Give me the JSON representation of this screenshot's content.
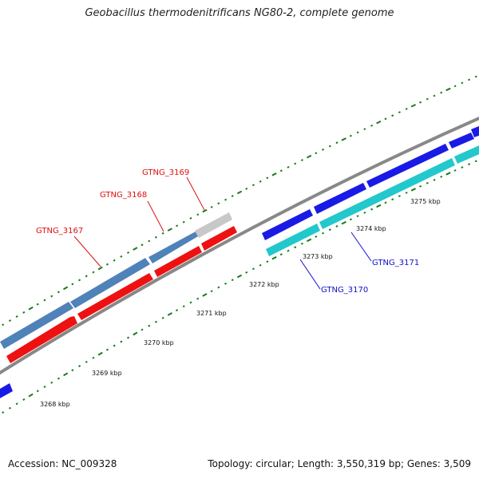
{
  "title": "Geobacillus thermodenitrificans NG80-2, complete genome",
  "footer": {
    "accession": "Accession: NC_009328",
    "summary": "Topology: circular; Length: 3,550,319 bp; Genes: 3,509"
  },
  "colors": {
    "forward_gene": "#1a1ae6",
    "forward_gene_alt": "#4f82b8",
    "reverse_gene": "#ee1111",
    "cyan_gene": "#22c8cc",
    "gray_gene": "#c8c8c8",
    "backbone": "#888888",
    "tick_major": "#1a7a1a",
    "tick_minor": "#1a7a1a",
    "label_red": "#d11",
    "label_blue": "#1010cc"
  },
  "ticks": {
    "labels": [
      "3268 kbp",
      "3269 kbp",
      "3270 kbp",
      "3271 kbp",
      "3272 kbp",
      "3273 kbp",
      "3274 kbp",
      "3275 kbp"
    ]
  },
  "genes": [
    {
      "name": "GTNG_3167",
      "strand": "forward"
    },
    {
      "name": "GTNG_3168",
      "strand": "forward"
    },
    {
      "name": "GTNG_3169",
      "strand": "forward"
    },
    {
      "name": "GTNG_3170",
      "strand": "reverse"
    },
    {
      "name": "GTNG_3171",
      "strand": "reverse"
    }
  ]
}
